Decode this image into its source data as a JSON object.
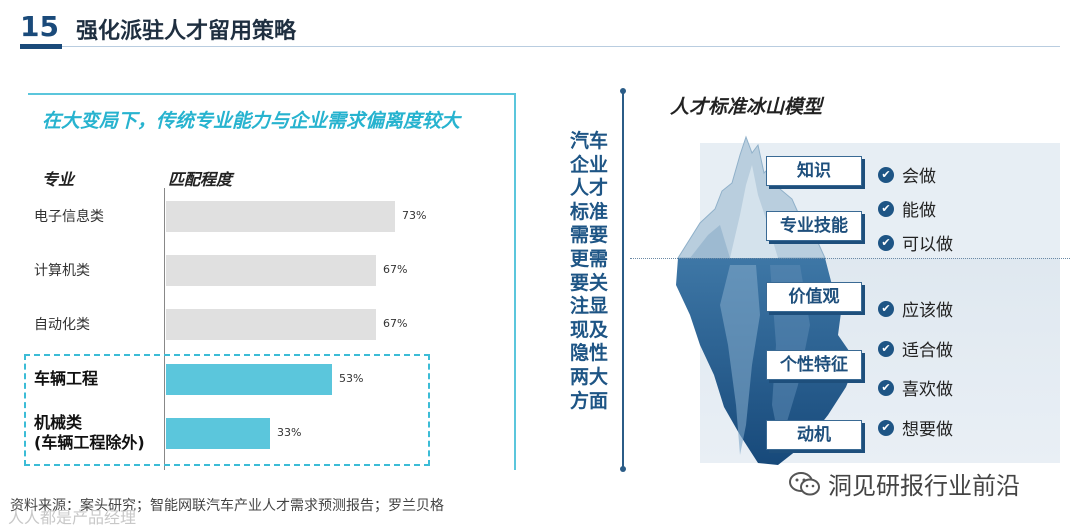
{
  "header": {
    "page_number": "15",
    "title": "强化派驻人才留用策略"
  },
  "left_panel": {
    "heading": "在大变局下，传统专业能力与企业需求偏离度较大",
    "col_major": "专业",
    "col_match": "匹配程度",
    "source": "资料来源：案头研究；智能网联汽车产业人才需求预测报告；罗兰贝格"
  },
  "chart_data": {
    "type": "bar",
    "orientation": "horizontal",
    "categories": [
      "电子信息类",
      "计算机类",
      "自动化类",
      "车辆工程",
      "机械类\n(车辆工程除外)"
    ],
    "values": [
      73,
      67,
      67,
      53,
      33
    ],
    "value_labels": [
      "73%",
      "67%",
      "67%",
      "53%",
      "33%"
    ],
    "highlighted": [
      "车辆工程",
      "机械类\n(车辆工程除外)"
    ],
    "xlim": [
      0,
      100
    ],
    "colors": {
      "normal": "#e0e0e0",
      "highlight": "#5bc6dc"
    }
  },
  "middle": {
    "vertical_text": "汽车企业人才标准需要更需要关注显现及隐性两大方面"
  },
  "iceberg": {
    "title": "人才标准冰山模型",
    "visible": [
      {
        "label": "知识",
        "items": [
          "会做"
        ]
      },
      {
        "label": "专业技能",
        "items": [
          "能做",
          "可以做"
        ]
      }
    ],
    "hidden": [
      {
        "label": "价值观",
        "items": [
          "应该做"
        ]
      },
      {
        "label": "个性特征",
        "items": [
          "适合做",
          "喜欢做"
        ]
      },
      {
        "label": "动机",
        "items": [
          "想要做"
        ]
      }
    ]
  },
  "watermark": {
    "text": "洞见研报行业前沿",
    "corner_text": "人人都是产品经理"
  },
  "colors": {
    "accent_cyan": "#5bc6dc",
    "navy": "#1e5585",
    "title_cyan": "#27b3cf"
  },
  "icons": {
    "check": "check-circle-icon",
    "wechat": "wechat-icon"
  }
}
